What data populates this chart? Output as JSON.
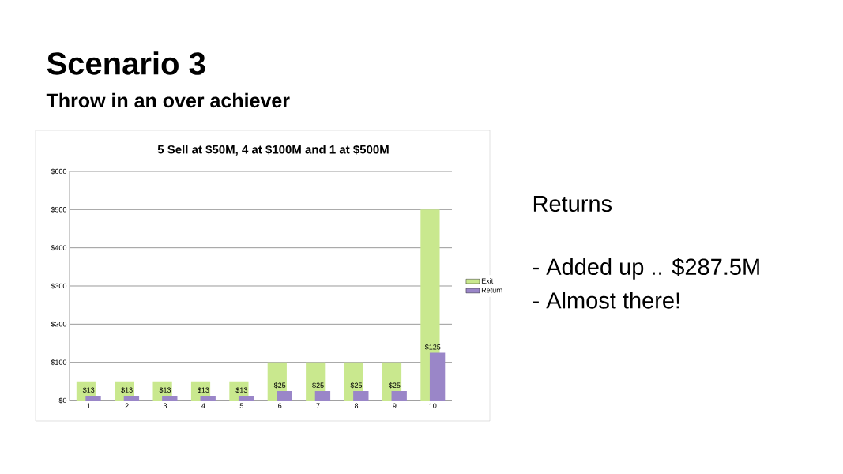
{
  "chart_data": {
    "type": "bar",
    "title": "Scenario 3",
    "subtitle": "Throw in an over achiever",
    "annotations": [
      "5 Sell at $50M, 4 at $100M and 1 at $500M",
      "Returns",
      "- Added up .. $287.5M",
      "- Almost there!"
    ],
    "categories": [
      "1",
      "2",
      "3",
      "4",
      "5",
      "6",
      "7",
      "8",
      "9",
      "10"
    ],
    "series": [
      {
        "name": "Exit",
        "color": "#c9e88e",
        "values": [
          50,
          50,
          50,
          50,
          50,
          100,
          100,
          100,
          100,
          500
        ]
      },
      {
        "name": "Return",
        "color": "#9a86c8",
        "values": [
          12.5,
          12.5,
          12.5,
          12.5,
          12.5,
          25,
          25,
          25,
          25,
          125
        ],
        "value_labels": [
          "$13",
          "$13",
          "$13",
          "$13",
          "$13",
          "$25",
          "$25",
          "$25",
          "$25",
          "$125"
        ]
      }
    ],
    "ylim": [
      0,
      600
    ],
    "yticks": [
      {
        "value": 0,
        "label": "$0"
      },
      {
        "value": 100,
        "label": "$100"
      },
      {
        "value": 200,
        "label": "$200"
      },
      {
        "value": 300,
        "label": "$300"
      },
      {
        "value": 400,
        "label": "$400"
      },
      {
        "value": 500,
        "label": "$500"
      },
      {
        "value": 600,
        "label": "$600"
      }
    ],
    "grid": "y",
    "legend": "right"
  }
}
